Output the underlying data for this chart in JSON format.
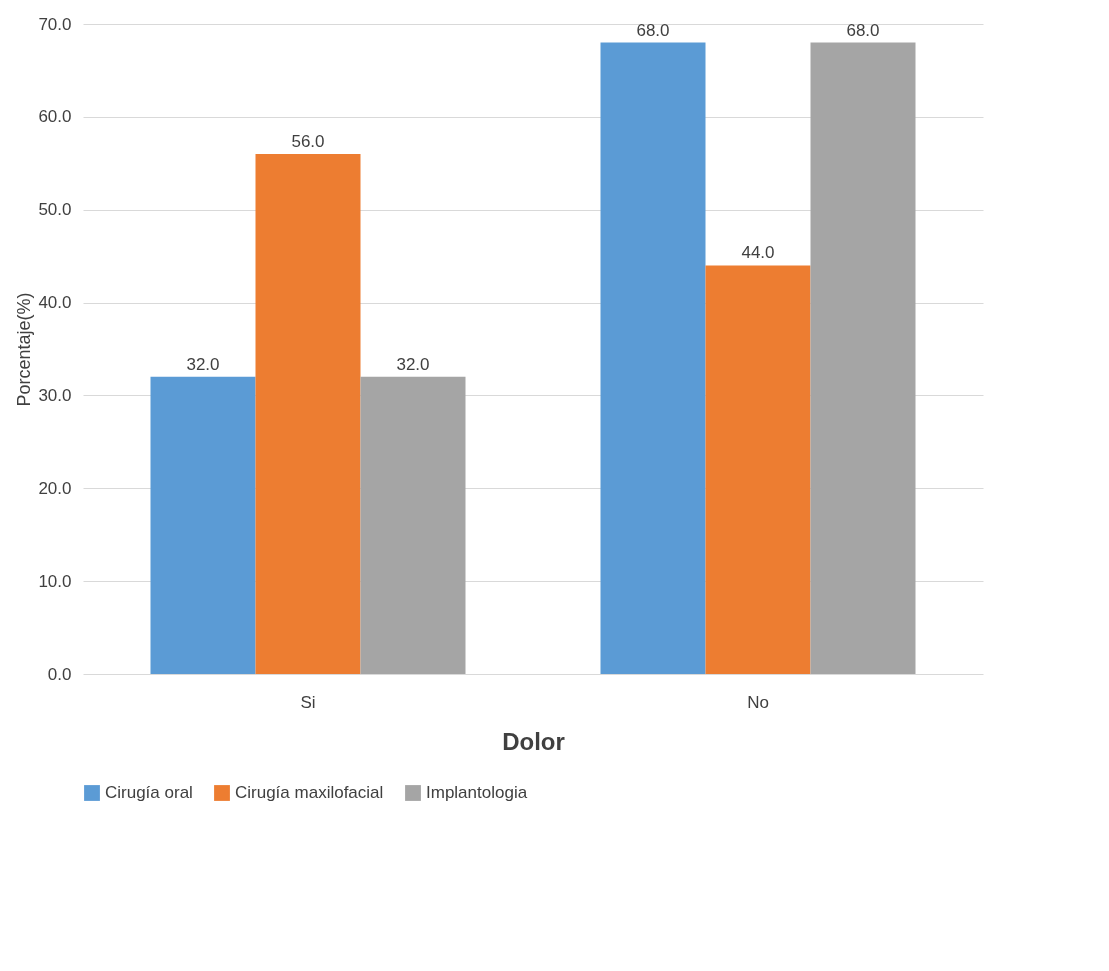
{
  "chart_data": {
    "type": "bar",
    "xlabel": "Dolor",
    "ylabel": "Porcentaje(%)",
    "categories": [
      "Si",
      "No"
    ],
    "series": [
      {
        "name": "Cirugía oral",
        "color": "#5b9bd5",
        "values": [
          32,
          68
        ],
        "value_labels": [
          "32.0",
          "68.0"
        ]
      },
      {
        "name": "Cirugía maxilofacial",
        "color": "#ed7d31",
        "values": [
          56,
          44
        ],
        "value_labels": [
          "56.0",
          "44.0"
        ]
      },
      {
        "name": "Implantologia",
        "color": "#a5a5a5",
        "values": [
          32,
          68
        ],
        "value_labels": [
          "32.0",
          "68.0"
        ]
      }
    ],
    "ylim": [
      0,
      70
    ],
    "yticks": [
      {
        "value": 0,
        "label": "0.0"
      },
      {
        "value": 10,
        "label": "10.0"
      },
      {
        "value": 20,
        "label": "20.0"
      },
      {
        "value": 30,
        "label": "30.0"
      },
      {
        "value": 40,
        "label": "40.0"
      },
      {
        "value": 50,
        "label": "50.0"
      },
      {
        "value": 60,
        "label": "60.0"
      },
      {
        "value": 70,
        "label": "70.0"
      }
    ],
    "grid": "y",
    "legend": "bottom"
  }
}
